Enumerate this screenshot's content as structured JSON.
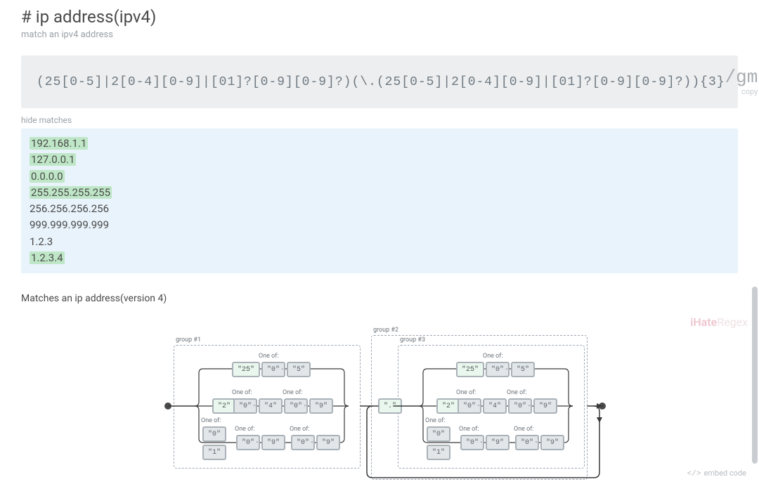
{
  "title": "# ip address(ipv4)",
  "subtitle": "match an ipv4 address",
  "regex": "(25[0-5]|2[0-4][0-9]|[01]?[0-9][0-9]?)(\\.(25[0-5]|2[0-4][0-9]|[01]?[0-9][0-9]?)){3}",
  "flags": "/gm",
  "copy_label": "copy",
  "hide_matches": "hide matches",
  "tests": [
    {
      "text": "192.168.1.1",
      "match": true
    },
    {
      "text": "127.0.0.1",
      "match": true
    },
    {
      "text": "0.0.0.0",
      "match": true
    },
    {
      "text": "255.255.255.255",
      "match": true
    },
    {
      "text": "256.256.256.256",
      "match": false
    },
    {
      "text": "999.999.999.999",
      "match": false
    },
    {
      "text": "1.2.3",
      "match": false
    },
    {
      "text": "1.2.3.4",
      "match": true
    }
  ],
  "explain": "Matches an ip address(version 4)",
  "watermark_a": "iHate",
  "watermark_b": "Regex",
  "embed_label": "embed code",
  "diagram_colors": {
    "dash": "#9fa8b2",
    "path": "#3a3a3a",
    "tok_bg": "#eaf7ef",
    "tok_grey": "#e2e6e9",
    "tok_border": "#aab2b8"
  },
  "group_labels": {
    "g1": "group #1",
    "g2": "group #2",
    "g3": "group #3",
    "one_of": "One of:"
  },
  "tokens": {
    "t25": "\"25\"",
    "t2": "\"2\"",
    "t0": "\"0\"",
    "t4": "\"4\"",
    "t5": "\"5\"",
    "t9": "\"9\"",
    "t1": "\"1\"",
    "dot": "\".\""
  }
}
